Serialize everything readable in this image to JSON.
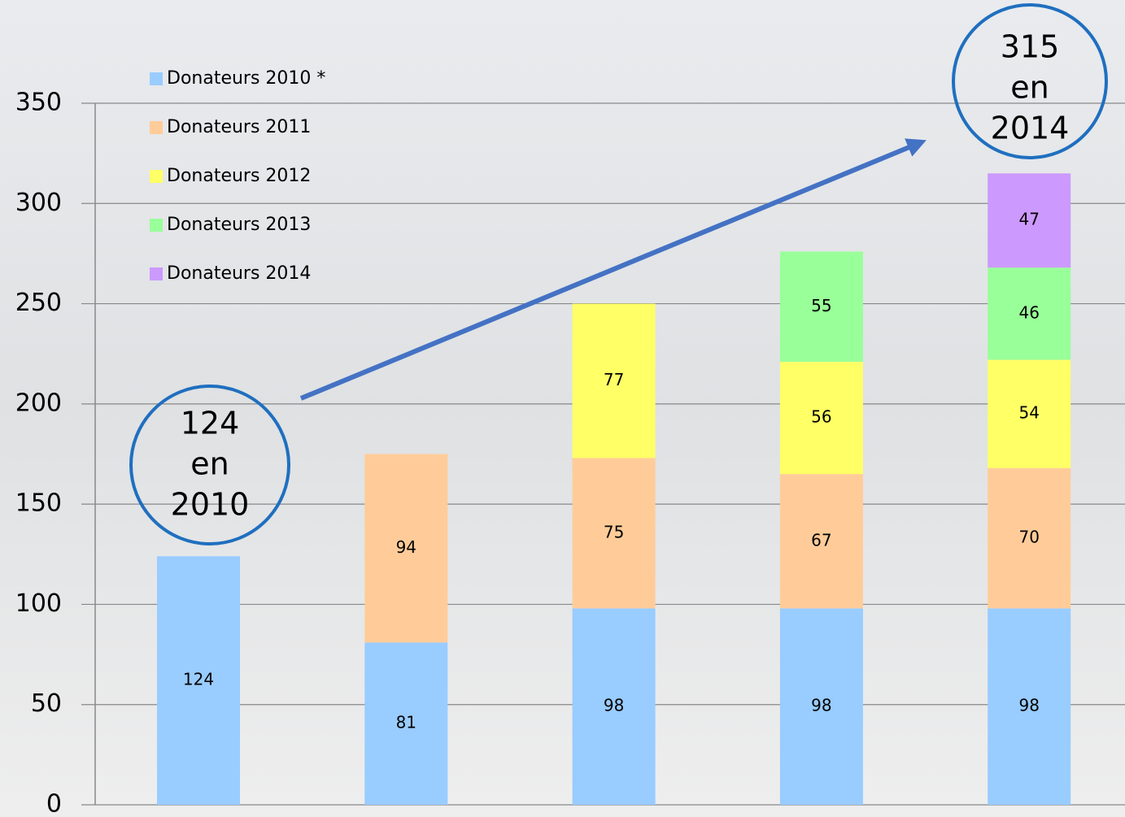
{
  "chart_data": {
    "type": "stacked_bar",
    "categories": [
      null,
      null,
      null,
      null,
      null
    ],
    "series": [
      {
        "name": "Donateurs 2010 *",
        "color": "#99ccff",
        "values": [
          124,
          81,
          98,
          98,
          98
        ]
      },
      {
        "name": "Donateurs 2011",
        "color": "#ffcc99",
        "values": [
          null,
          94,
          75,
          67,
          70
        ]
      },
      {
        "name": "Donateurs 2012",
        "color": "#ffff66",
        "values": [
          null,
          null,
          77,
          56,
          54
        ]
      },
      {
        "name": "Donateurs 2013",
        "color": "#99ff99",
        "values": [
          null,
          null,
          null,
          55,
          46
        ]
      },
      {
        "name": "Donateurs 2014",
        "color": "#cc99ff",
        "values": [
          null,
          null,
          null,
          null,
          47
        ]
      }
    ],
    "ylim": [
      0,
      350
    ],
    "yticks": [
      0,
      50,
      100,
      150,
      200,
      250,
      300,
      350
    ],
    "grid": true,
    "legend": "top-left",
    "annotations": [
      {
        "text": [
          "124",
          "en",
          "2010"
        ]
      },
      {
        "text": [
          "315",
          "en",
          "2014"
        ]
      }
    ]
  }
}
